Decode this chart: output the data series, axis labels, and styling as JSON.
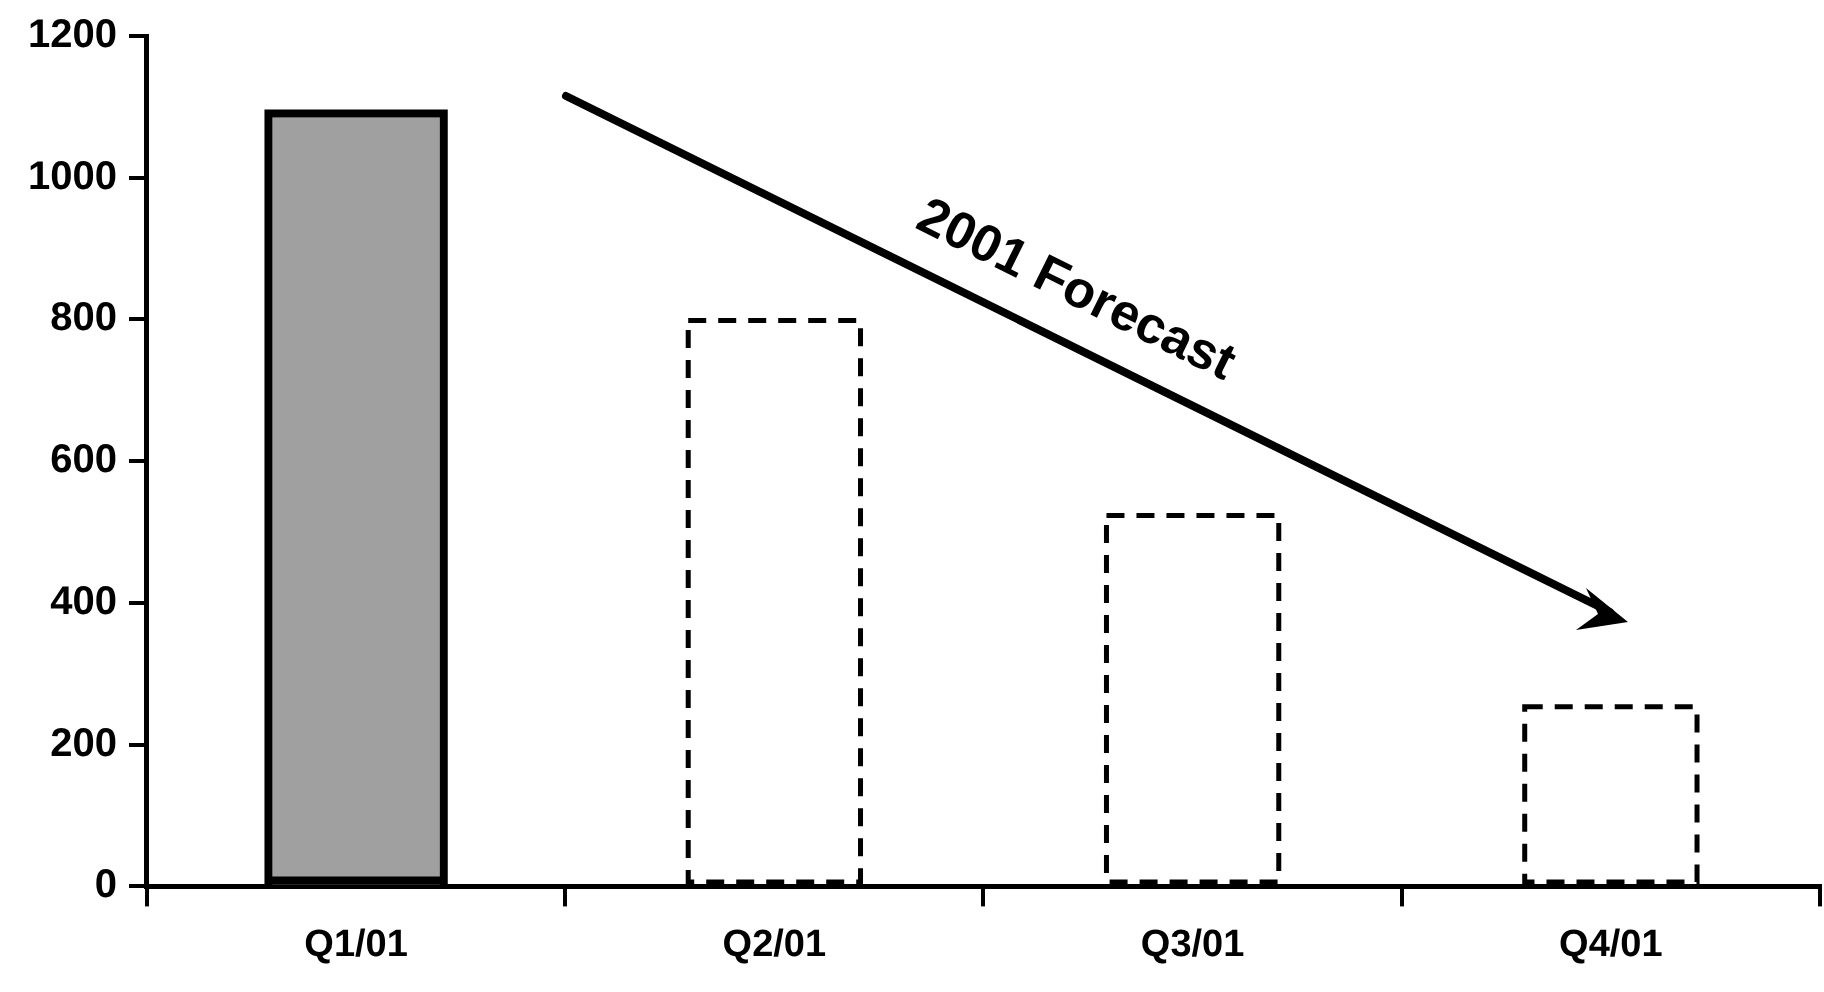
{
  "chart_data": {
    "type": "bar",
    "categories": [
      "Q1/01",
      "Q2/01",
      "Q3/01",
      "Q4/01"
    ],
    "series": [
      {
        "color": "#a0a0a0",
        "values": [
          1085,
          null,
          null,
          null
        ],
        "line_style": "solid"
      },
      {
        "color": "#000000",
        "values": [
          null,
          795,
          520,
          250
        ],
        "line_style": "dashed"
      }
    ],
    "ylim": [
      0,
      1200
    ],
    "yticks": [
      0,
      200,
      400,
      600,
      800,
      1000,
      1200
    ],
    "grid": false,
    "legend": false,
    "annotations": [
      "2001 Forecast"
    ]
  }
}
